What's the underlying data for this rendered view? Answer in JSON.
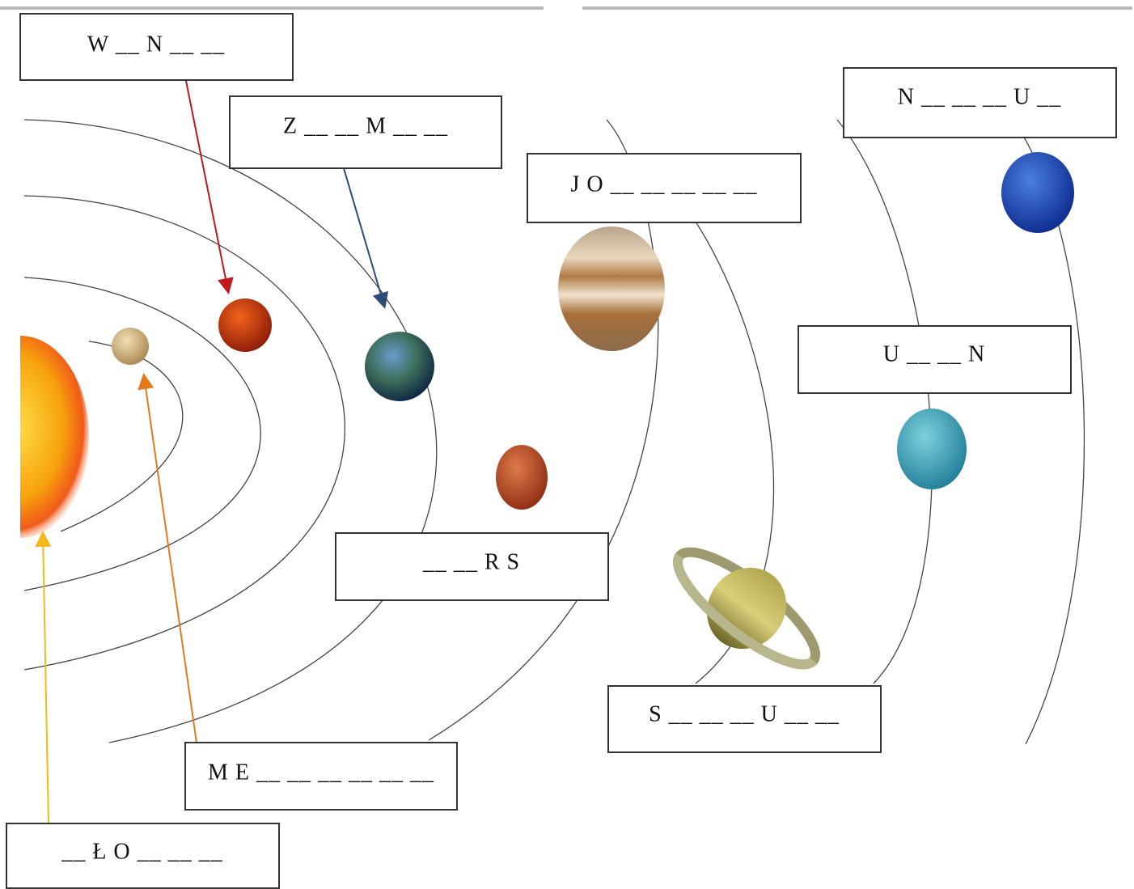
{
  "labels": [
    "W __ N __ __",
    "Z __ __ M __ __",
    "J O __ __ __ __ __",
    "N __ __ __ U __",
    "U __ __ N",
    "__ __ R S",
    "S __ __ __ U __ __",
    "M E __ __ __ __ __ __",
    "__ Ł O __ __ __"
  ]
}
